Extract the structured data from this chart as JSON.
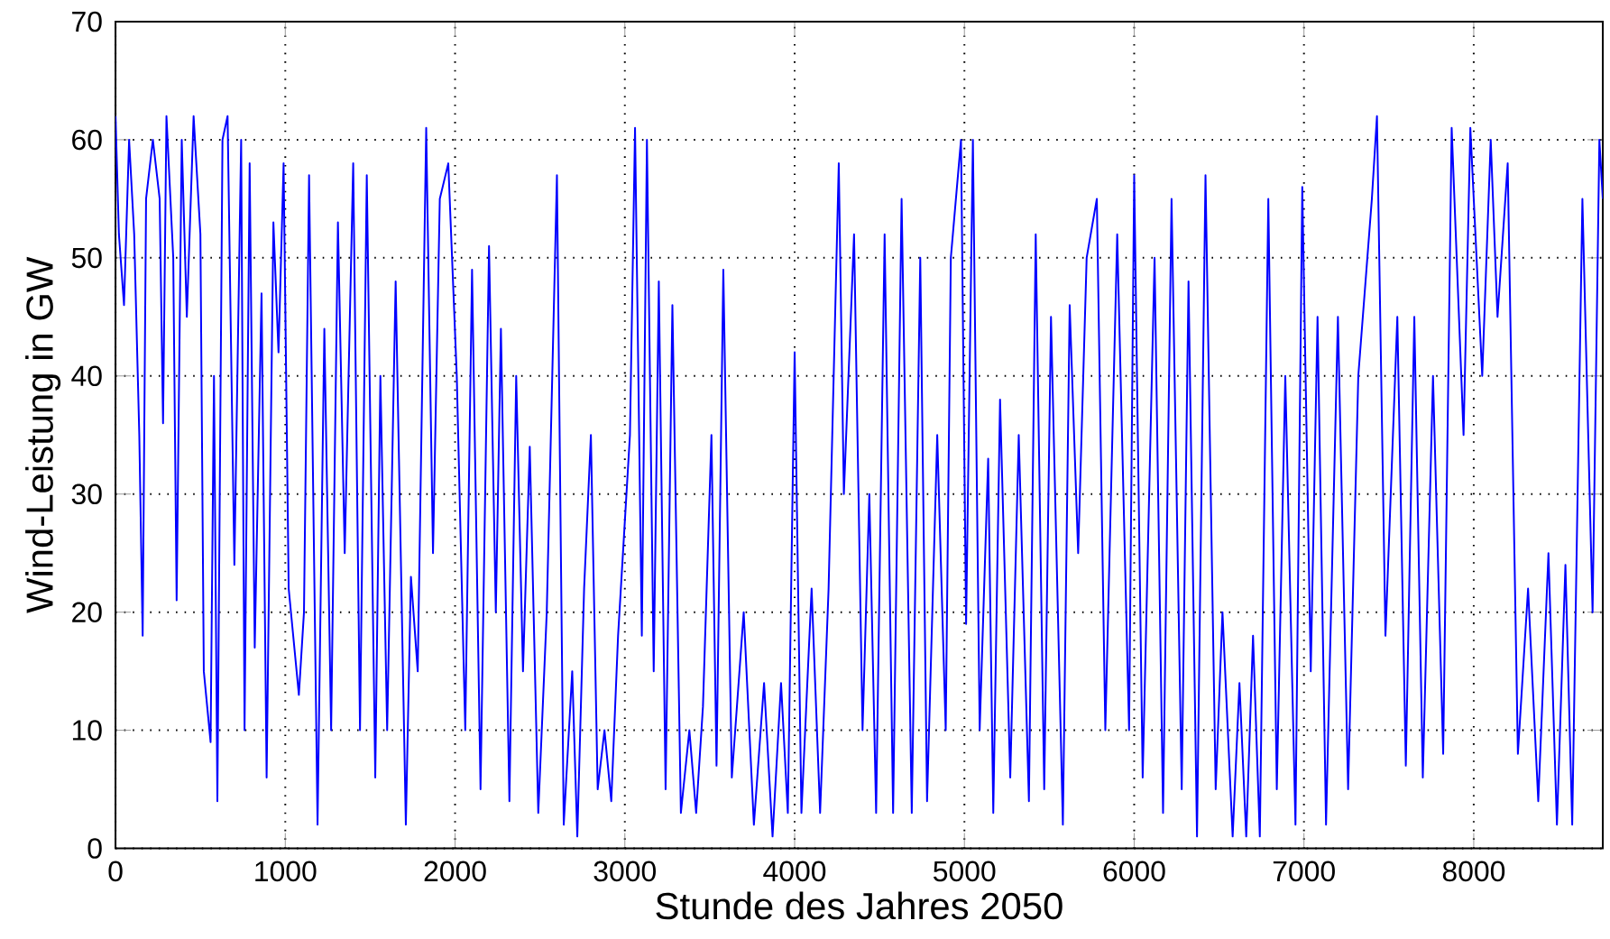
{
  "chart_data": {
    "type": "line",
    "xlabel": "Stunde des Jahres 2050",
    "ylabel": "Wind-Leistung in GW",
    "xlim": [
      0,
      8760
    ],
    "ylim": [
      0,
      70
    ],
    "xticks": [
      0,
      1000,
      2000,
      3000,
      4000,
      5000,
      6000,
      7000,
      8000
    ],
    "yticks": [
      0,
      10,
      20,
      30,
      40,
      50,
      60,
      70
    ],
    "grid": true,
    "line_style": "solid",
    "marker": "none",
    "series": [
      {
        "color": "#0000ff",
        "x": [
          0,
          20,
          50,
          80,
          110,
          140,
          160,
          180,
          220,
          260,
          280,
          300,
          340,
          360,
          390,
          420,
          460,
          500,
          520,
          560,
          580,
          600,
          630,
          660,
          700,
          740,
          760,
          790,
          820,
          860,
          890,
          930,
          960,
          990,
          1020,
          1080,
          1110,
          1140,
          1190,
          1230,
          1270,
          1310,
          1350,
          1400,
          1440,
          1480,
          1530,
          1560,
          1600,
          1650,
          1710,
          1740,
          1780,
          1830,
          1870,
          1910,
          1960,
          2010,
          2060,
          2100,
          2150,
          2200,
          2240,
          2270,
          2320,
          2360,
          2400,
          2440,
          2490,
          2540,
          2600,
          2640,
          2690,
          2720,
          2760,
          2800,
          2840,
          2880,
          2920,
          2960,
          3030,
          3060,
          3100,
          3130,
          3170,
          3200,
          3240,
          3280,
          3330,
          3380,
          3420,
          3460,
          3510,
          3540,
          3580,
          3630,
          3700,
          3760,
          3820,
          3870,
          3920,
          3960,
          4000,
          4040,
          4100,
          4150,
          4200,
          4260,
          4290,
          4350,
          4400,
          4440,
          4480,
          4530,
          4580,
          4630,
          4690,
          4740,
          4780,
          4840,
          4890,
          4920,
          4980,
          5010,
          5050,
          5090,
          5140,
          5170,
          5210,
          5270,
          5320,
          5380,
          5420,
          5470,
          5510,
          5580,
          5620,
          5670,
          5720,
          5780,
          5830,
          5900,
          5970,
          6000,
          6050,
          6120,
          6170,
          6220,
          6280,
          6320,
          6370,
          6420,
          6480,
          6520,
          6580,
          6620,
          6660,
          6700,
          6740,
          6790,
          6840,
          6890,
          6950,
          6990,
          7040,
          7080,
          7130,
          7200,
          7260,
          7320,
          7400,
          7430,
          7480,
          7550,
          7600,
          7650,
          7700,
          7760,
          7820,
          7870,
          7940,
          7980,
          8050,
          8100,
          8140,
          8200,
          8260,
          8320,
          8380,
          8440,
          8490,
          8540,
          8580,
          8640,
          8700,
          8740,
          8760
        ],
        "values": [
          62,
          52,
          46,
          60,
          52,
          35,
          18,
          55,
          60,
          55,
          36,
          62,
          50,
          21,
          60,
          45,
          62,
          52,
          15,
          9,
          40,
          4,
          60,
          62,
          24,
          60,
          10,
          58,
          17,
          47,
          6,
          53,
          42,
          58,
          22,
          13,
          20,
          57,
          2,
          44,
          10,
          53,
          25,
          58,
          10,
          57,
          6,
          40,
          10,
          48,
          2,
          23,
          15,
          61,
          25,
          55,
          58,
          40,
          10,
          49,
          5,
          51,
          20,
          44,
          4,
          40,
          15,
          34,
          3,
          20,
          57,
          2,
          15,
          1,
          22,
          35,
          5,
          10,
          4,
          18,
          35,
          61,
          18,
          60,
          15,
          48,
          5,
          46,
          3,
          10,
          3,
          12,
          35,
          7,
          49,
          6,
          20,
          2,
          14,
          1,
          14,
          3,
          42,
          3,
          22,
          3,
          22,
          58,
          30,
          52,
          10,
          30,
          3,
          52,
          3,
          55,
          3,
          50,
          4,
          35,
          10,
          50,
          60,
          19,
          60,
          10,
          33,
          3,
          38,
          6,
          35,
          4,
          52,
          5,
          45,
          2,
          46,
          25,
          50,
          55,
          10,
          52,
          10,
          57,
          6,
          50,
          3,
          55,
          5,
          48,
          1,
          57,
          5,
          20,
          1,
          14,
          1,
          18,
          1,
          55,
          5,
          40,
          2,
          56,
          15,
          45,
          2,
          45,
          5,
          40,
          55,
          62,
          18,
          45,
          7,
          45,
          6,
          40,
          8,
          61,
          35,
          61,
          40,
          60,
          45,
          58,
          8,
          22,
          4,
          25,
          2,
          24,
          2,
          55,
          20,
          60,
          55
        ]
      }
    ]
  }
}
